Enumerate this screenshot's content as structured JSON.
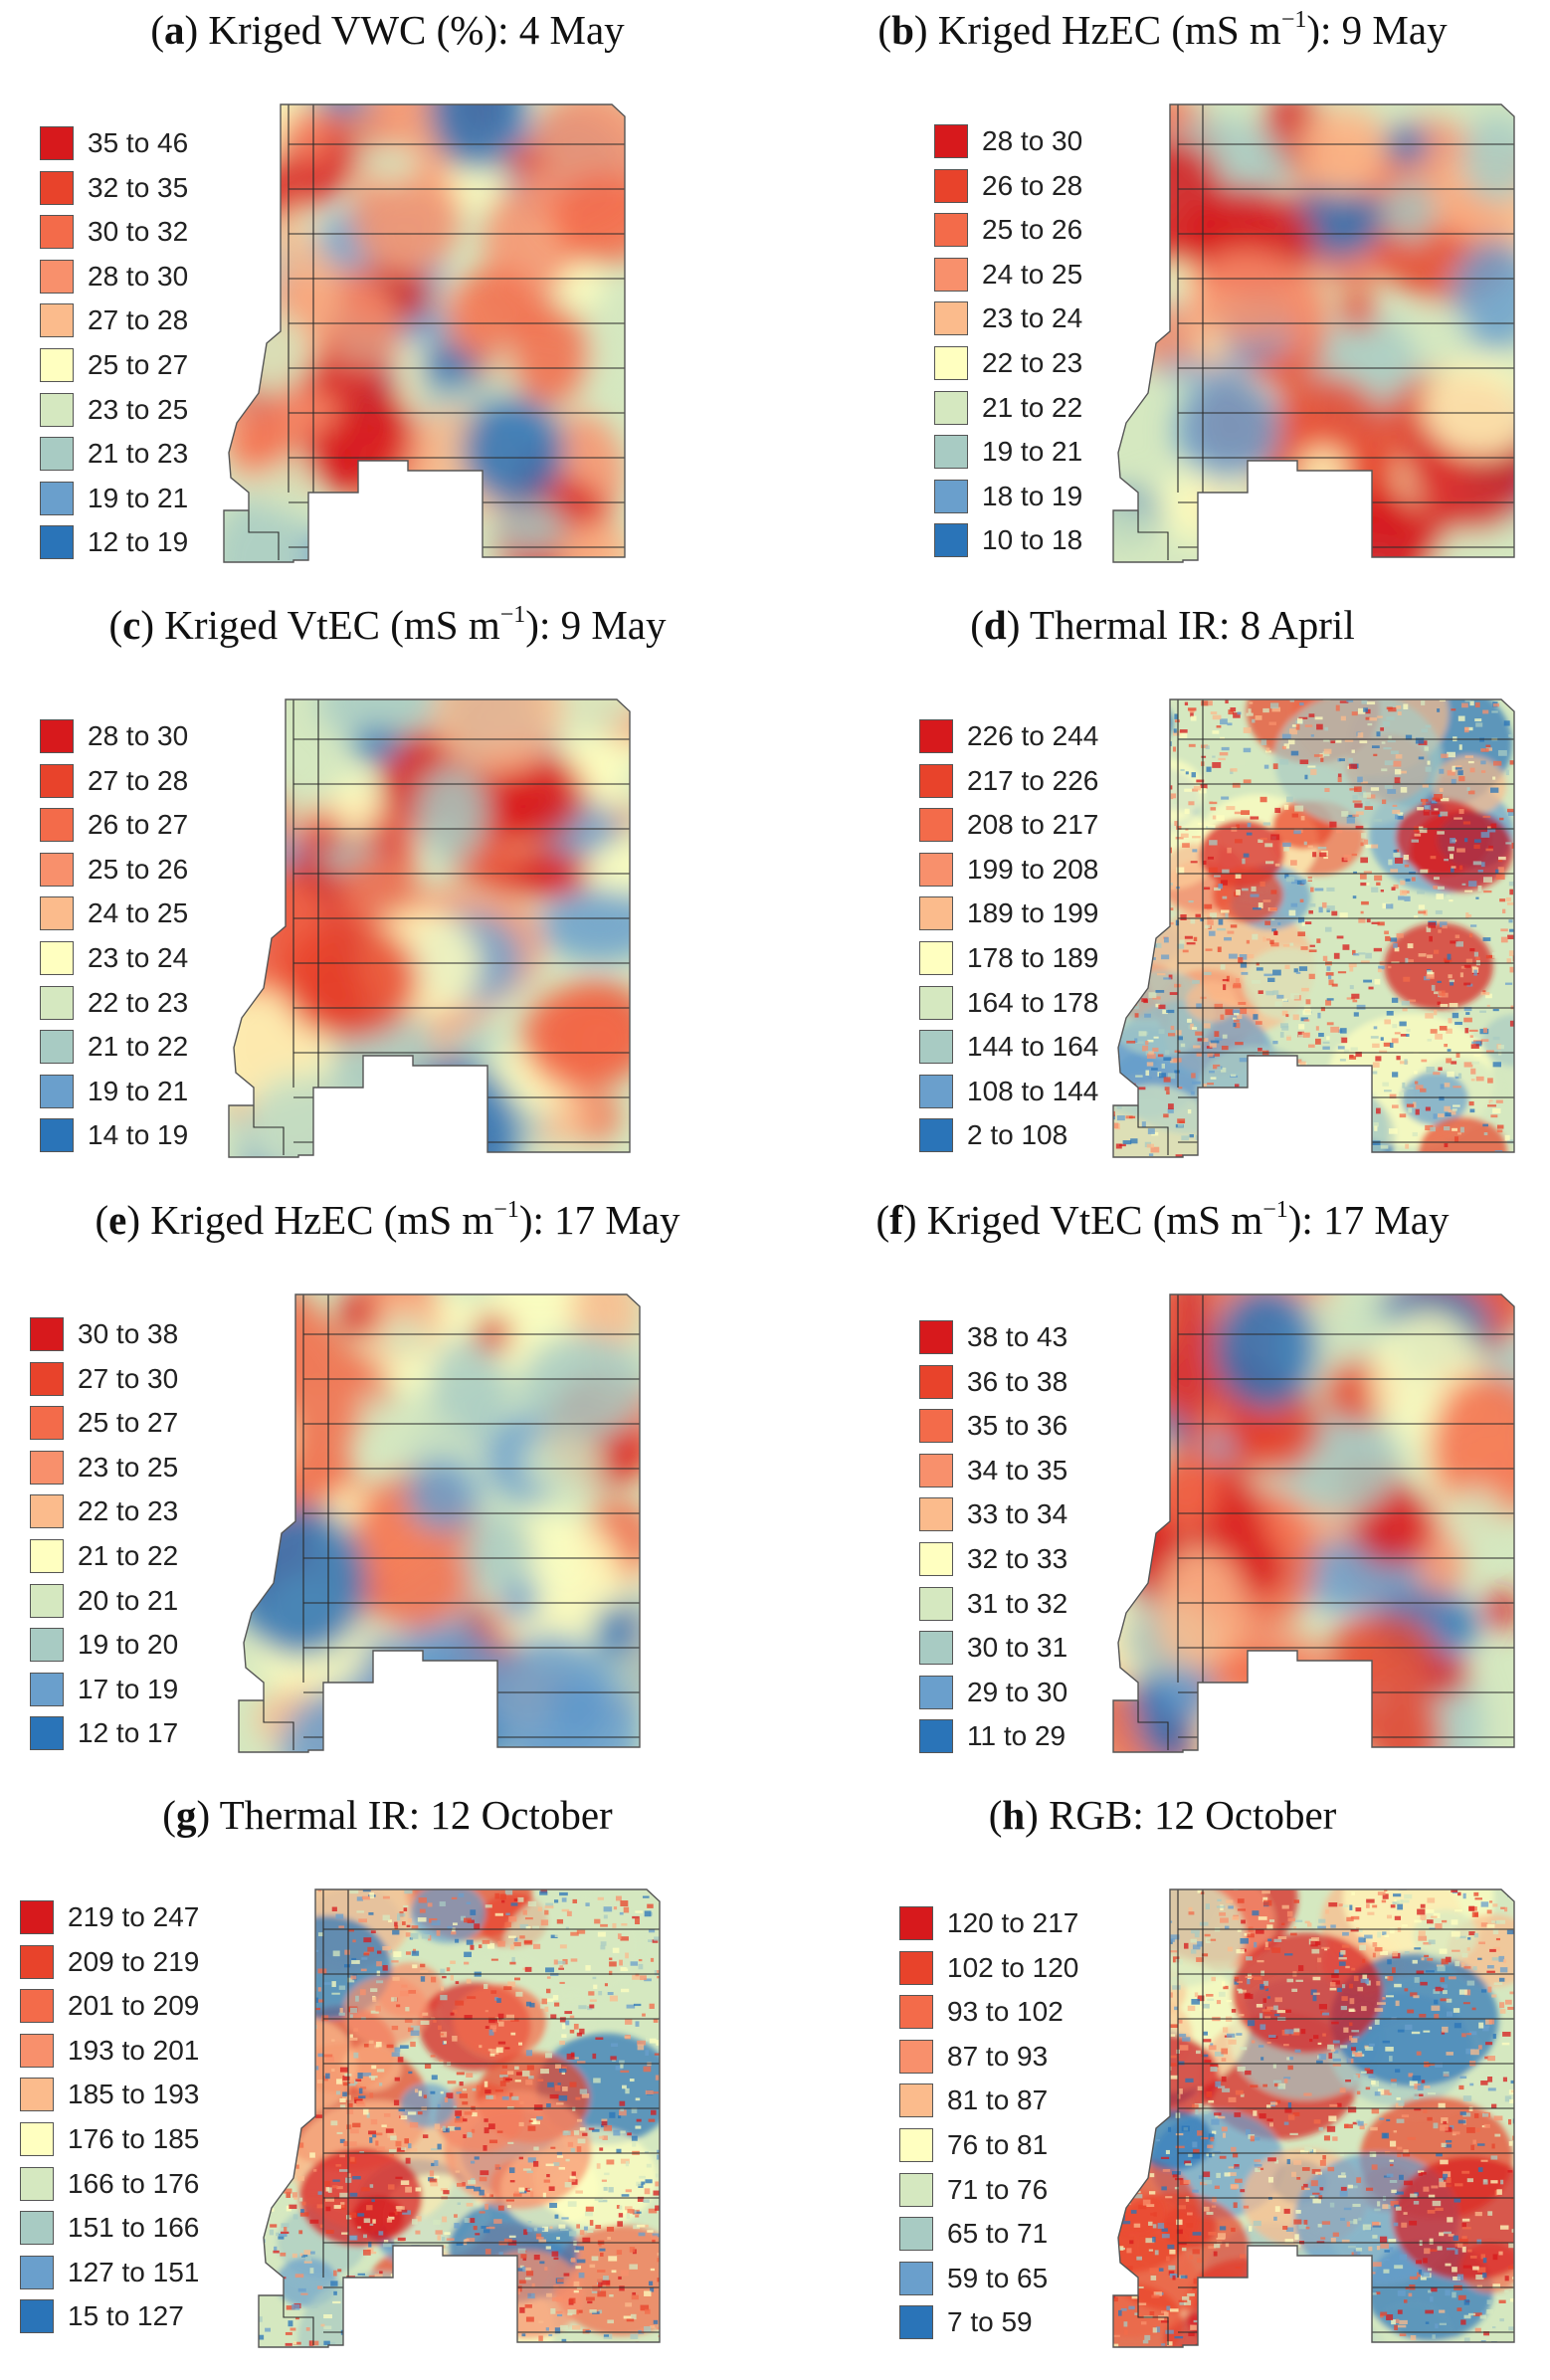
{
  "colors": {
    "scale": [
      "#d7191c",
      "#e8432b",
      "#f36b4a",
      "#f8906c",
      "#fbbb8c",
      "#ffffc0",
      "#d5e8c0",
      "#a8cbc3",
      "#6a9fcc",
      "#2a74b8"
    ],
    "outline": "#333333",
    "background": "#ffffff"
  },
  "panels": [
    {
      "letter": "a",
      "title": "Kriged VWC (%): 4 May",
      "legend": [
        "35 to 46",
        "32 to 35",
        "30 to 32",
        "28 to 30",
        "27 to 28",
        "25 to 27",
        "23 to 25",
        "21 to 23",
        "19 to 21",
        "12 to 19"
      ]
    },
    {
      "letter": "b",
      "title_pre": "Kriged HzEC (mS m",
      "title_sup": "−1",
      "title_post": "): 9 May",
      "legend": [
        "28 to 30",
        "26 to 28",
        "25 to 26",
        "24 to 25",
        "23 to 24",
        "22 to 23",
        "21 to 22",
        "19 to 21",
        "18 to 19",
        "10 to 18"
      ]
    },
    {
      "letter": "c",
      "title_pre": "Kriged VtEC (mS m",
      "title_sup": "−1",
      "title_post": "): 9 May",
      "legend": [
        "28 to 30",
        "27 to 28",
        "26 to 27",
        "25 to 26",
        "24 to 25",
        "23 to 24",
        "22 to 23",
        "21 to 22",
        "19 to 21",
        "14 to 19"
      ]
    },
    {
      "letter": "d",
      "title": "Thermal IR: 8 April",
      "legend": [
        "226 to 244",
        "217 to 226",
        "208 to 217",
        "199 to 208",
        "189 to 199",
        "178 to 189",
        "164 to 178",
        "144 to 164",
        "108 to 144",
        "2 to 108"
      ]
    },
    {
      "letter": "e",
      "title_pre": "Kriged HzEC (mS m",
      "title_sup": "−1",
      "title_post": "): 17 May",
      "legend": [
        "30 to 38",
        "27 to 30",
        "25 to 27",
        "23 to 25",
        "22 to 23",
        "21 to 22",
        "20 to 21",
        "19 to 20",
        "17 to 19",
        "12 to 17"
      ]
    },
    {
      "letter": "f",
      "title_pre": "Kriged VtEC (mS m",
      "title_sup": "−1",
      "title_post": "): 17 May",
      "legend": [
        "38 to 43",
        "36 to 38",
        "35 to 36",
        "34 to 35",
        "33 to 34",
        "32 to 33",
        "31 to 32",
        "30 to 31",
        "29 to 30",
        "11 to 29"
      ]
    },
    {
      "letter": "g",
      "title": "Thermal IR: 12 October",
      "legend": [
        "219 to 247",
        "209 to 219",
        "201 to 209",
        "193 to 201",
        "185 to 193",
        "176 to 185",
        "166 to 176",
        "151 to 166",
        "127 to 151",
        "15 to 127"
      ]
    },
    {
      "letter": "h",
      "title": "RGB: 12 October",
      "legend": [
        "120 to 217",
        "102 to 120",
        "93 to 102",
        "87 to 93",
        "81 to 87",
        "76 to 81",
        "71 to 76",
        "65 to 71",
        "59 to 65",
        "7 to 59"
      ]
    }
  ]
}
